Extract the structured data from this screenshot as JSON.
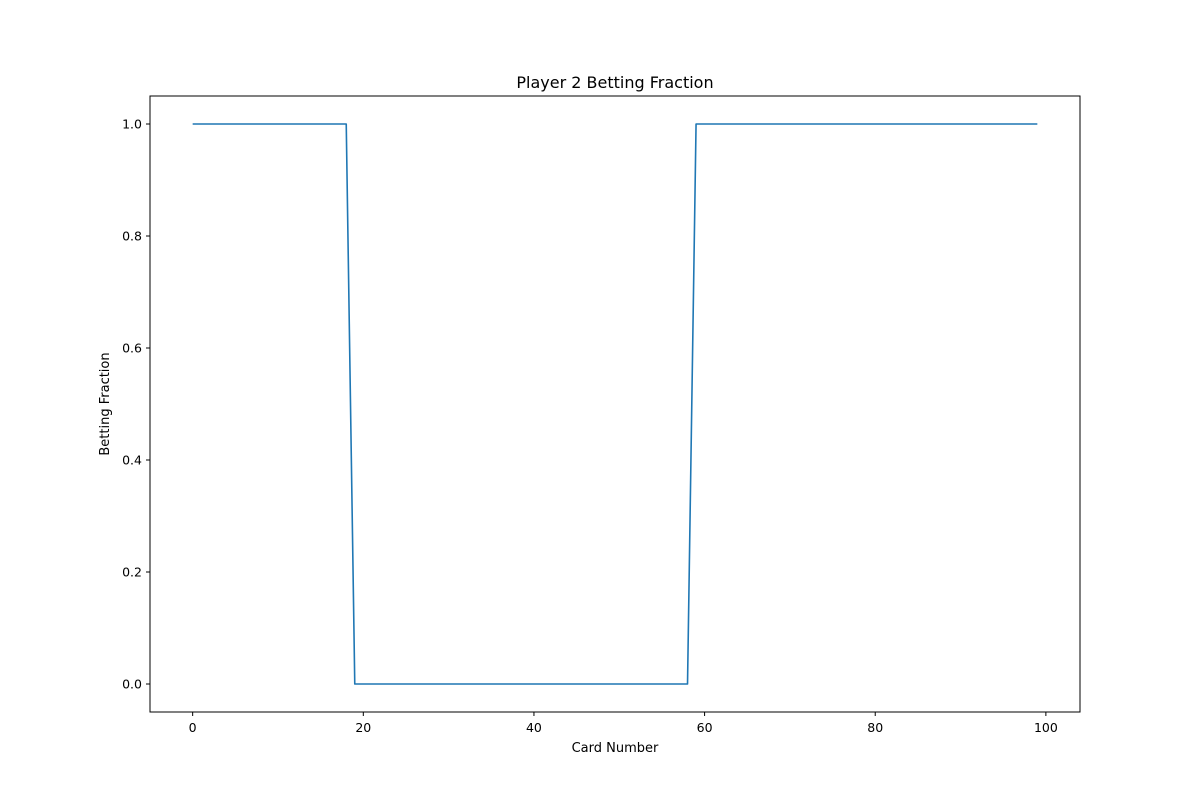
{
  "chart_data": {
    "type": "line",
    "title": "Player 2 Betting Fraction",
    "xlabel": "Card Number",
    "ylabel": "Betting Fraction",
    "xlim": [
      -5,
      104
    ],
    "ylim": [
      -0.05,
      1.05
    ],
    "xticks": [
      0,
      20,
      40,
      60,
      80,
      100
    ],
    "yticks": [
      0.0,
      0.2,
      0.4,
      0.6,
      0.8,
      1.0
    ],
    "xtick_labels": [
      "0",
      "20",
      "40",
      "60",
      "80",
      "100"
    ],
    "ytick_labels": [
      "0.0",
      "0.2",
      "0.4",
      "0.6",
      "0.8",
      "1.0"
    ],
    "grid": false,
    "series": [
      {
        "color": "#1f77b4",
        "x": [
          0,
          18,
          19,
          58,
          59,
          99
        ],
        "y": [
          1.0,
          1.0,
          0.0,
          0.0,
          1.0,
          1.0
        ]
      }
    ]
  }
}
